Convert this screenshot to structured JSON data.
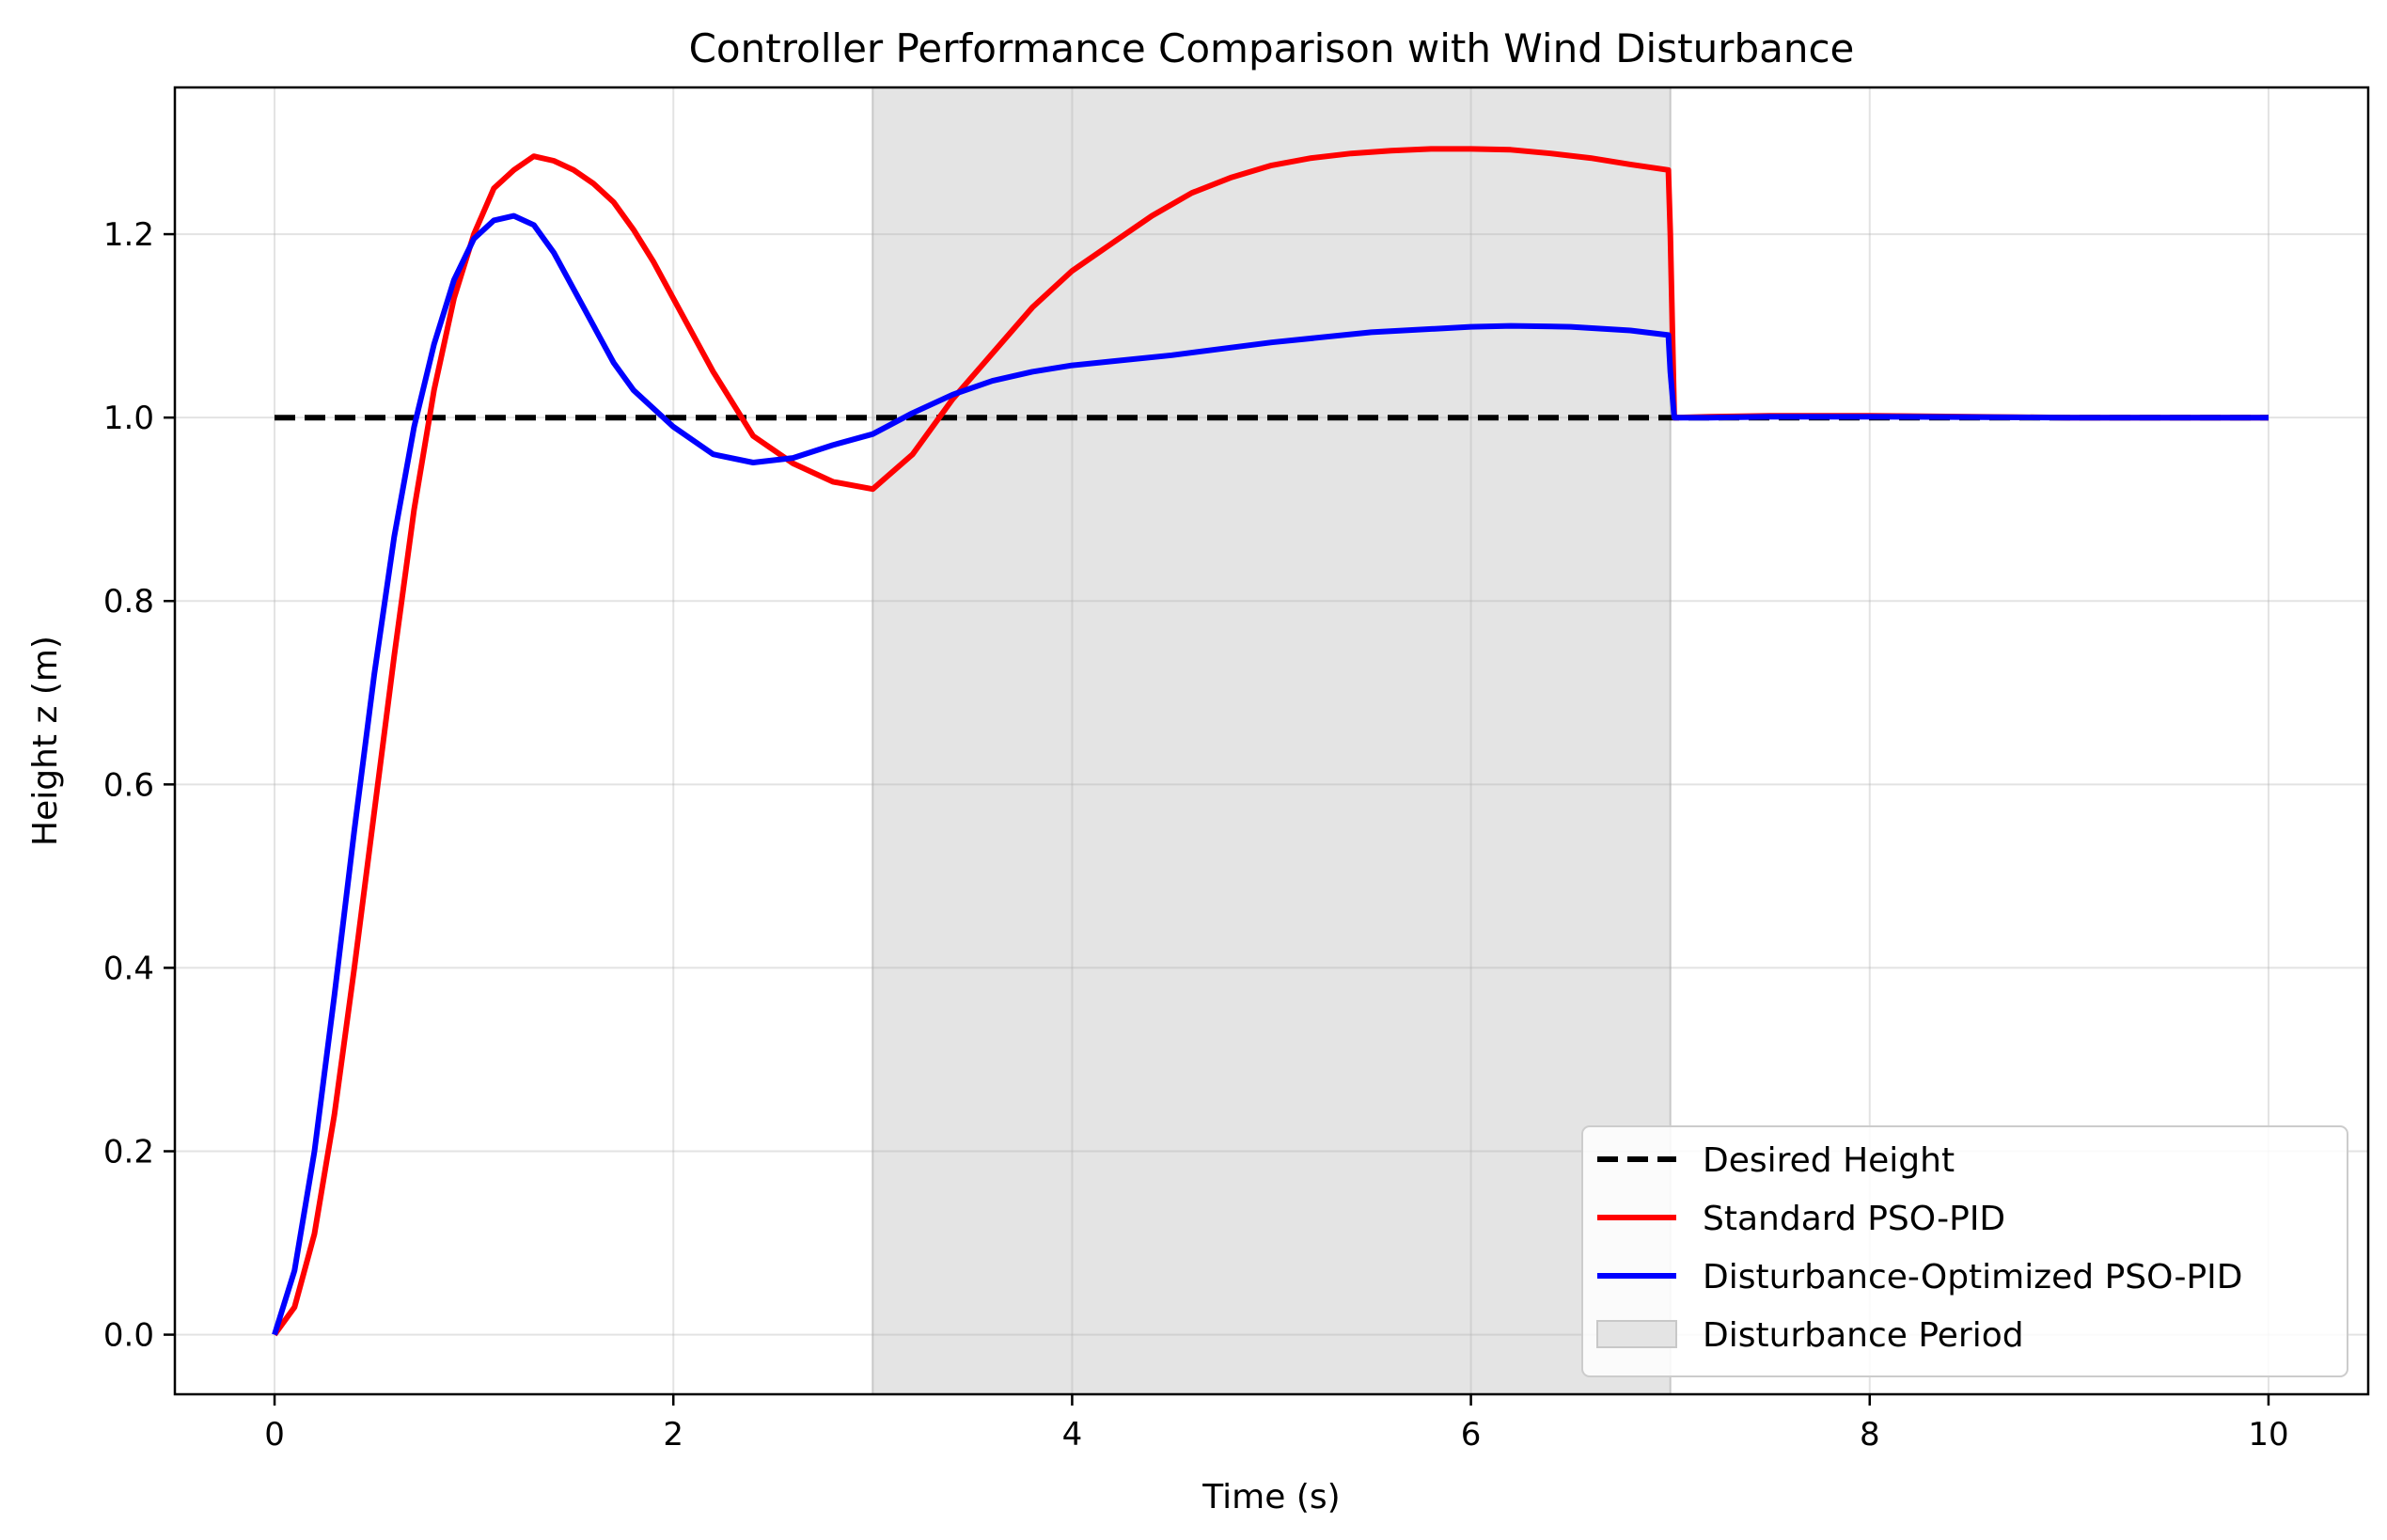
{
  "chart_data": {
    "type": "line",
    "title": "Controller Performance Comparison with Wind Disturbance",
    "xlabel": "Time (s)",
    "ylabel": "Height z (m)",
    "xlim": [
      -0.5,
      10.5
    ],
    "ylim": [
      -0.065,
      1.36
    ],
    "xticks": [
      0,
      2,
      4,
      6,
      8,
      10
    ],
    "yticks": [
      0.0,
      0.2,
      0.4,
      0.6,
      0.8,
      1.0,
      1.2
    ],
    "xtick_labels": [
      "0",
      "2",
      "4",
      "6",
      "8",
      "10"
    ],
    "ytick_labels": [
      "0.0",
      "0.2",
      "0.4",
      "0.6",
      "0.8",
      "1.0",
      "1.2"
    ],
    "grid": true,
    "legend_position": "lower-right",
    "shaded_region": {
      "label": "Disturbance Period",
      "x_start": 3,
      "x_end": 7,
      "color": "#e4e4e4"
    },
    "series": [
      {
        "name": "Desired Height",
        "color": "#000000",
        "style": "dashed",
        "x": [
          0,
          10
        ],
        "y": [
          1.0,
          1.0
        ]
      },
      {
        "name": "Standard PSO-PID",
        "color": "#ff0000",
        "style": "solid",
        "x": [
          0,
          0.1,
          0.2,
          0.3,
          0.4,
          0.5,
          0.6,
          0.7,
          0.8,
          0.9,
          1.0,
          1.1,
          1.2,
          1.3,
          1.4,
          1.5,
          1.6,
          1.7,
          1.8,
          1.9,
          2.0,
          2.2,
          2.4,
          2.6,
          2.8,
          3.0,
          3.2,
          3.4,
          3.6,
          3.8,
          4.0,
          4.2,
          4.4,
          4.6,
          4.8,
          5.0,
          5.2,
          5.4,
          5.6,
          5.8,
          6.0,
          6.2,
          6.4,
          6.6,
          6.8,
          6.99,
          7.0,
          7.02,
          7.2,
          7.5,
          8.0,
          9.0,
          10.0
        ],
        "y": [
          0.0,
          0.03,
          0.11,
          0.24,
          0.4,
          0.57,
          0.74,
          0.9,
          1.03,
          1.13,
          1.2,
          1.25,
          1.27,
          1.285,
          1.28,
          1.27,
          1.255,
          1.235,
          1.205,
          1.17,
          1.13,
          1.05,
          0.98,
          0.95,
          0.93,
          0.922,
          0.96,
          1.02,
          1.07,
          1.12,
          1.16,
          1.19,
          1.22,
          1.245,
          1.262,
          1.275,
          1.283,
          1.288,
          1.291,
          1.293,
          1.293,
          1.292,
          1.288,
          1.283,
          1.276,
          1.27,
          1.2,
          1.0,
          1.001,
          1.002,
          1.002,
          1.0,
          1.0
        ]
      },
      {
        "name": "Disturbance-Optimized PSO-PID",
        "color": "#0000ff",
        "style": "solid",
        "x": [
          0,
          0.1,
          0.2,
          0.3,
          0.4,
          0.5,
          0.6,
          0.7,
          0.8,
          0.9,
          1.0,
          1.1,
          1.2,
          1.3,
          1.4,
          1.5,
          1.6,
          1.7,
          1.8,
          1.9,
          2.0,
          2.2,
          2.4,
          2.6,
          2.8,
          3.0,
          3.2,
          3.4,
          3.6,
          3.8,
          4.0,
          4.5,
          5.0,
          5.5,
          6.0,
          6.2,
          6.5,
          6.8,
          6.99,
          7.0,
          7.02,
          7.2,
          7.5,
          8.0,
          9.0,
          10.0
        ],
        "y": [
          0.0,
          0.07,
          0.2,
          0.37,
          0.55,
          0.72,
          0.87,
          0.99,
          1.08,
          1.15,
          1.195,
          1.215,
          1.22,
          1.21,
          1.18,
          1.14,
          1.1,
          1.06,
          1.03,
          1.01,
          0.99,
          0.96,
          0.951,
          0.956,
          0.97,
          0.982,
          1.005,
          1.025,
          1.04,
          1.05,
          1.057,
          1.068,
          1.082,
          1.093,
          1.099,
          1.1,
          1.099,
          1.095,
          1.09,
          1.05,
          1.0,
          1.0,
          1.001,
          1.001,
          1.0,
          1.0
        ]
      }
    ]
  }
}
